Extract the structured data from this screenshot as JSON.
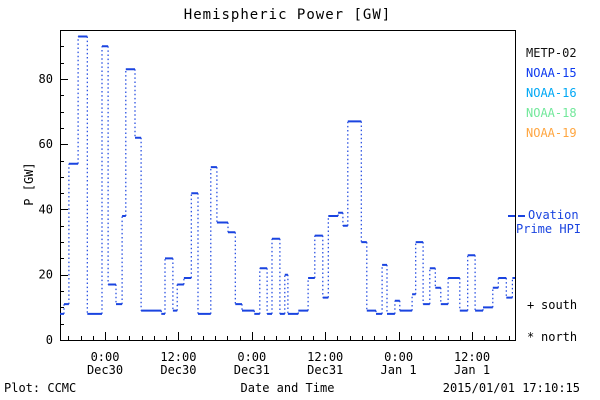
{
  "title": "Hemispheric Power [GW]",
  "colors": {
    "background": "#ffffff",
    "axis": "#000000",
    "blue": "#1a44e0",
    "metp02": "#111111",
    "noaa15": "#0d3bf0",
    "noaa16": "#00a8f5",
    "noaa18": "#72e89b",
    "noaa19": "#ffa640"
  },
  "legend": {
    "satellites": [
      {
        "label": "METP-02",
        "color_key": "metp02"
      },
      {
        "label": "NOAA-15",
        "color_key": "noaa15"
      },
      {
        "label": "NOAA-16",
        "color_key": "noaa16"
      },
      {
        "label": "NOAA-18",
        "color_key": "noaa18"
      },
      {
        "label": "NOAA-19",
        "color_key": "noaa19"
      }
    ],
    "ovation": {
      "line1": "Ovation",
      "line2": "Prime HPI"
    },
    "symbols": [
      {
        "glyph": "+",
        "label": "south"
      },
      {
        "glyph": "*",
        "label": "north"
      }
    ]
  },
  "footer": {
    "left": "Plot: CCMC",
    "center": "Date and Time",
    "right": "2015/01/01 17:10:15"
  },
  "chart_data": {
    "type": "line",
    "subtype": "step-with-dotted-connectors",
    "title": "Hemispheric Power [GW]",
    "xlabel": "Date and Time",
    "ylabel": "P [GW]",
    "ylim": [
      0,
      95
    ],
    "yticks": [
      0,
      20,
      40,
      60,
      80
    ],
    "y_minor_step": 5,
    "x_unit": "hours from Dec30 0:00",
    "x_hours_range": [
      -7.36,
      67.03
    ],
    "x_minor_step_hours": 2,
    "x_major_ticks": [
      {
        "hour": 0,
        "time": "0:00",
        "date": "Dec30"
      },
      {
        "hour": 12,
        "time": "12:00",
        "date": "Dec30"
      },
      {
        "hour": 24,
        "time": "0:00",
        "date": "Dec31"
      },
      {
        "hour": 36,
        "time": "12:00",
        "date": "Dec31"
      },
      {
        "hour": 48,
        "time": "0:00",
        "date": "Jan 1"
      },
      {
        "hour": 60,
        "time": "12:00",
        "date": "Jan 1"
      }
    ],
    "grid": false,
    "legend_position": "right",
    "series": [
      {
        "name": "Ovation Prime HPI",
        "color_key": "blue",
        "units": "GW",
        "points": [
          [
            -7.4,
            8
          ],
          [
            -6.7,
            11
          ],
          [
            -5.9,
            54
          ],
          [
            -4.4,
            93
          ],
          [
            -2.9,
            8
          ],
          [
            -0.5,
            90
          ],
          [
            0.5,
            17
          ],
          [
            1.8,
            11
          ],
          [
            2.8,
            38
          ],
          [
            3.4,
            83
          ],
          [
            4.9,
            62
          ],
          [
            5.9,
            9
          ],
          [
            9.2,
            8
          ],
          [
            9.8,
            25
          ],
          [
            11.1,
            9
          ],
          [
            11.8,
            17
          ],
          [
            12.9,
            19
          ],
          [
            14.1,
            45
          ],
          [
            15.2,
            8
          ],
          [
            17.3,
            53
          ],
          [
            18.3,
            36
          ],
          [
            20.1,
            33
          ],
          [
            21.3,
            11
          ],
          [
            22.4,
            9
          ],
          [
            24.4,
            8
          ],
          [
            25.3,
            22
          ],
          [
            26.5,
            8
          ],
          [
            27.3,
            31
          ],
          [
            28.6,
            8
          ],
          [
            29.4,
            20
          ],
          [
            29.9,
            8
          ],
          [
            31.6,
            9
          ],
          [
            33.2,
            19
          ],
          [
            34.3,
            32
          ],
          [
            35.6,
            13
          ],
          [
            36.5,
            38
          ],
          [
            38.1,
            39
          ],
          [
            38.9,
            35
          ],
          [
            39.7,
            67
          ],
          [
            41.9,
            30
          ],
          [
            42.8,
            9
          ],
          [
            44.3,
            8
          ],
          [
            45.3,
            23
          ],
          [
            46.1,
            8
          ],
          [
            47.4,
            12
          ],
          [
            48.2,
            9
          ],
          [
            50.2,
            14
          ],
          [
            50.8,
            30
          ],
          [
            52,
            11
          ],
          [
            53.1,
            22
          ],
          [
            54,
            16
          ],
          [
            54.9,
            11
          ],
          [
            56.1,
            19
          ],
          [
            57.2,
            19
          ],
          [
            58,
            9
          ],
          [
            59.3,
            26
          ],
          [
            60.5,
            9
          ],
          [
            61.8,
            10
          ],
          [
            63.4,
            16
          ],
          [
            64.3,
            19
          ],
          [
            65.6,
            13
          ],
          [
            66.6,
            19
          ]
        ]
      }
    ]
  }
}
